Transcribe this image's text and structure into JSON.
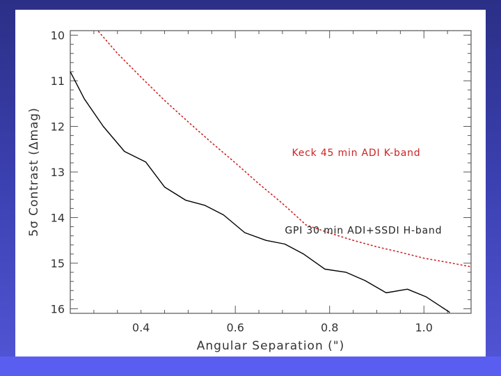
{
  "chart_data": {
    "type": "line",
    "title": "",
    "xlabel": "Angular Separation (\")",
    "ylabel": "5σ Contrast (Δmag)",
    "xlim": [
      0.25,
      1.1
    ],
    "ylim": [
      16.1,
      9.9
    ],
    "y_inverted": true,
    "xticks": [
      0.4,
      0.6,
      0.8,
      1.0
    ],
    "xtick_labels": [
      "0.4",
      "0.6",
      "0.8",
      "1.0"
    ],
    "yticks": [
      10,
      11,
      12,
      13,
      14,
      15,
      16
    ],
    "ytick_labels": [
      "10",
      "11",
      "12",
      "13",
      "14",
      "15",
      "16"
    ],
    "grid": false,
    "series": [
      {
        "name": "Keck 45 min ADI K-band",
        "color": "#cc2222",
        "style": "dotted",
        "x": [
          0.31,
          0.35,
          0.4,
          0.45,
          0.5,
          0.55,
          0.6,
          0.65,
          0.7,
          0.75,
          0.8,
          0.85,
          0.9,
          0.95,
          1.0,
          1.05,
          1.1
        ],
        "y": [
          9.92,
          10.4,
          10.92,
          11.43,
          11.9,
          12.36,
          12.8,
          13.26,
          13.69,
          14.16,
          14.34,
          14.5,
          14.64,
          14.76,
          14.89,
          14.98,
          15.08
        ]
      },
      {
        "name": "GPI 30 min ADI+SSDI H-band",
        "color": "#000000",
        "style": "solid",
        "x": [
          0.25,
          0.28,
          0.32,
          0.365,
          0.41,
          0.45,
          0.495,
          0.535,
          0.575,
          0.62,
          0.665,
          0.705,
          0.745,
          0.79,
          0.835,
          0.875,
          0.92,
          0.965,
          1.005,
          1.055
        ],
        "y": [
          10.8,
          11.4,
          12.0,
          12.55,
          12.78,
          13.33,
          13.62,
          13.73,
          13.94,
          14.33,
          14.5,
          14.58,
          14.8,
          15.13,
          15.2,
          15.38,
          15.65,
          15.57,
          15.74,
          16.08
        ]
      }
    ],
    "annotations": [
      {
        "text": "Keck 45 min ADI K-band",
        "color": "#cc2222",
        "x": 0.72,
        "y": 12.65
      },
      {
        "text": "GPI 30 min ADI+SSDI H-band",
        "color": "#222222",
        "x": 0.705,
        "y": 14.35
      }
    ]
  }
}
